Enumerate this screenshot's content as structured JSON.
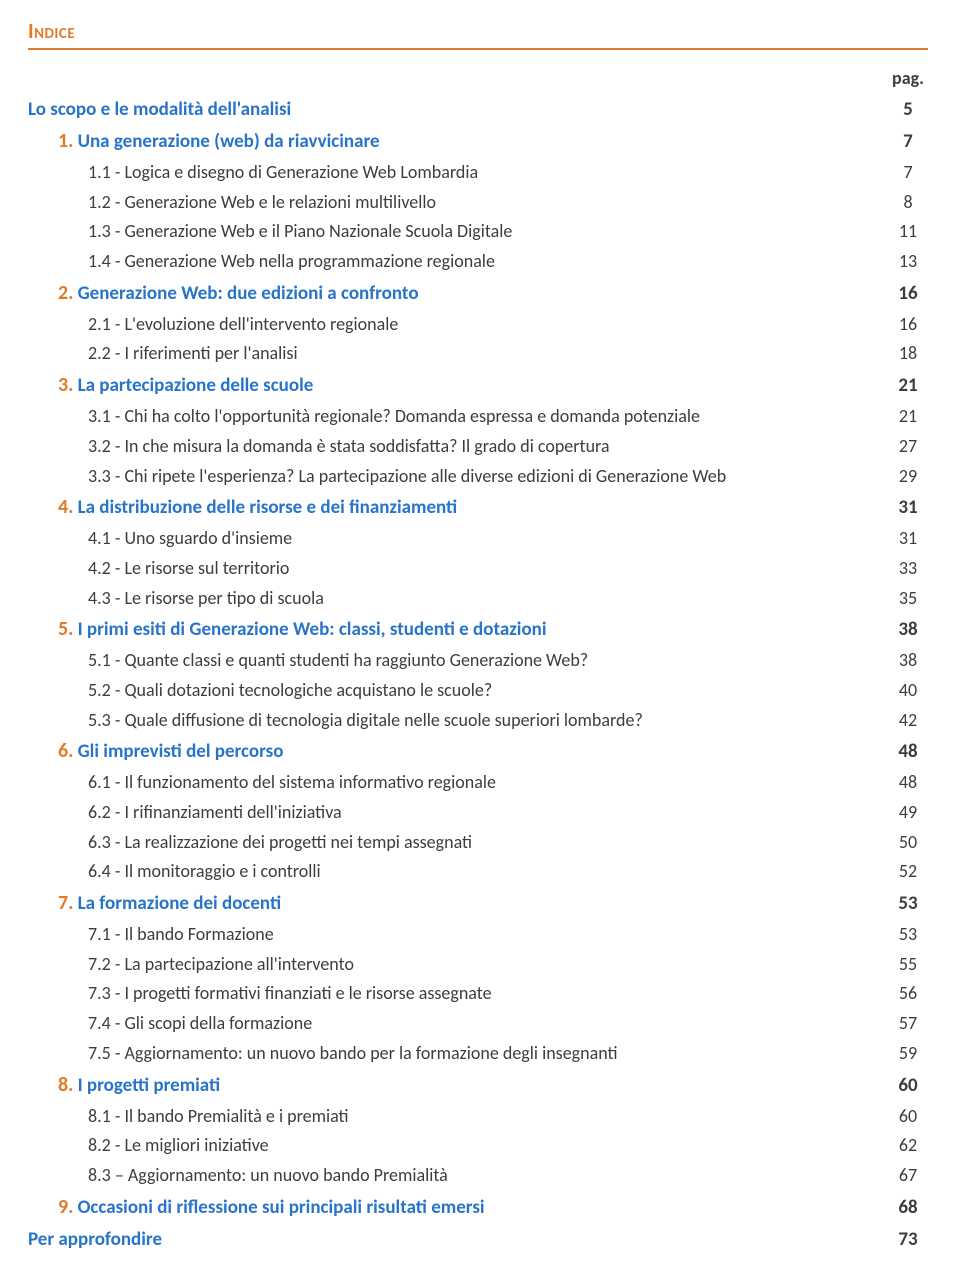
{
  "heading": "Indice",
  "page_label": "pag.",
  "intro": {
    "title": "Lo scopo e le modalità dell'analisi",
    "page": "5"
  },
  "footer": {
    "title": "Per approfondire",
    "page": "73"
  },
  "sections": [
    {
      "num": "1.",
      "title": "Una generazione (web) da riavvicinare",
      "page": "7",
      "subs": [
        {
          "label": "1.1 - Logica e disegno di Generazione Web Lombardia",
          "page": "7"
        },
        {
          "label": "1.2 - Generazione Web e le relazioni multilivello",
          "page": "8"
        },
        {
          "label": "1.3 - Generazione Web e il Piano Nazionale Scuola Digitale",
          "page": "11"
        },
        {
          "label": "1.4 - Generazione Web nella programmazione regionale",
          "page": "13"
        }
      ]
    },
    {
      "num": "2.",
      "title": "Generazione Web: due edizioni a confronto",
      "page": "16",
      "subs": [
        {
          "label": "2.1 - L'evoluzione dell'intervento regionale",
          "page": "16"
        },
        {
          "label": "2.2 - I riferimenti per l'analisi",
          "page": "18"
        }
      ]
    },
    {
      "num": "3.",
      "title": "La partecipazione delle scuole",
      "page": "21",
      "subs": [
        {
          "label": "3.1 - Chi ha colto l'opportunità regionale? Domanda espressa e domanda potenziale",
          "page": "21"
        },
        {
          "label": "3.2 - In che misura la domanda è stata soddisfatta? Il grado di copertura",
          "page": "27"
        },
        {
          "label": "3.3 - Chi ripete l'esperienza? La partecipazione alle diverse edizioni di Generazione Web",
          "page": "29"
        }
      ]
    },
    {
      "num": "4.",
      "title": "La distribuzione delle risorse e dei finanziamenti",
      "page": "31",
      "subs": [
        {
          "label": "4.1 - Uno sguardo d'insieme",
          "page": "31"
        },
        {
          "label": "4.2 - Le risorse sul territorio",
          "page": "33"
        },
        {
          "label": "4.3 - Le risorse per tipo di scuola",
          "page": "35"
        }
      ]
    },
    {
      "num": "5.",
      "title": "I primi esiti di Generazione Web: classi, studenti e dotazioni",
      "page": "38",
      "subs": [
        {
          "label": "5.1 - Quante classi e quanti studenti ha raggiunto Generazione Web?",
          "page": "38"
        },
        {
          "label": "5.2 - Quali dotazioni tecnologiche acquistano le scuole?",
          "page": "40"
        },
        {
          "label": "5.3 - Quale diffusione di tecnologia digitale nelle scuole superiori lombarde?",
          "page": "42"
        }
      ]
    },
    {
      "num": "6.",
      "title": "Gli imprevisti del percorso",
      "page": "48",
      "subs": [
        {
          "label": "6.1 - Il funzionamento del sistema informativo regionale",
          "page": "48"
        },
        {
          "label": "6.2 - I rifinanziamenti dell'iniziativa",
          "page": "49"
        },
        {
          "label": "6.3 - La realizzazione dei progetti nei tempi assegnati",
          "page": "50"
        },
        {
          "label": "6.4 - Il monitoraggio e i controlli",
          "page": "52"
        }
      ]
    },
    {
      "num": "7.",
      "title": "La formazione dei docenti",
      "page": "53",
      "subs": [
        {
          "label": "7.1 - Il bando Formazione",
          "page": "53"
        },
        {
          "label": "7.2 - La partecipazione all'intervento",
          "page": "55"
        },
        {
          "label": "7.3 - I progetti formativi finanziati e le risorse assegnate",
          "page": "56"
        },
        {
          "label": "7.4 - Gli scopi della formazione",
          "page": "57"
        },
        {
          "label": "7.5 - Aggiornamento: un nuovo bando per la formazione degli insegnanti",
          "page": "59"
        }
      ]
    },
    {
      "num": "8.",
      "title": "I progetti premiati",
      "page": "60",
      "subs": [
        {
          "label": "8.1 - Il bando Premialità e i premiati",
          "page": "60"
        },
        {
          "label": "8.2 - Le migliori iniziative",
          "page": "62"
        },
        {
          "label": "8.3 – Aggiornamento: un nuovo bando Premialità",
          "page": "67"
        }
      ]
    },
    {
      "num": "9.",
      "title": "Occasioni di riflessione sui principali risultati emersi",
      "page": "68",
      "subs": []
    }
  ]
}
